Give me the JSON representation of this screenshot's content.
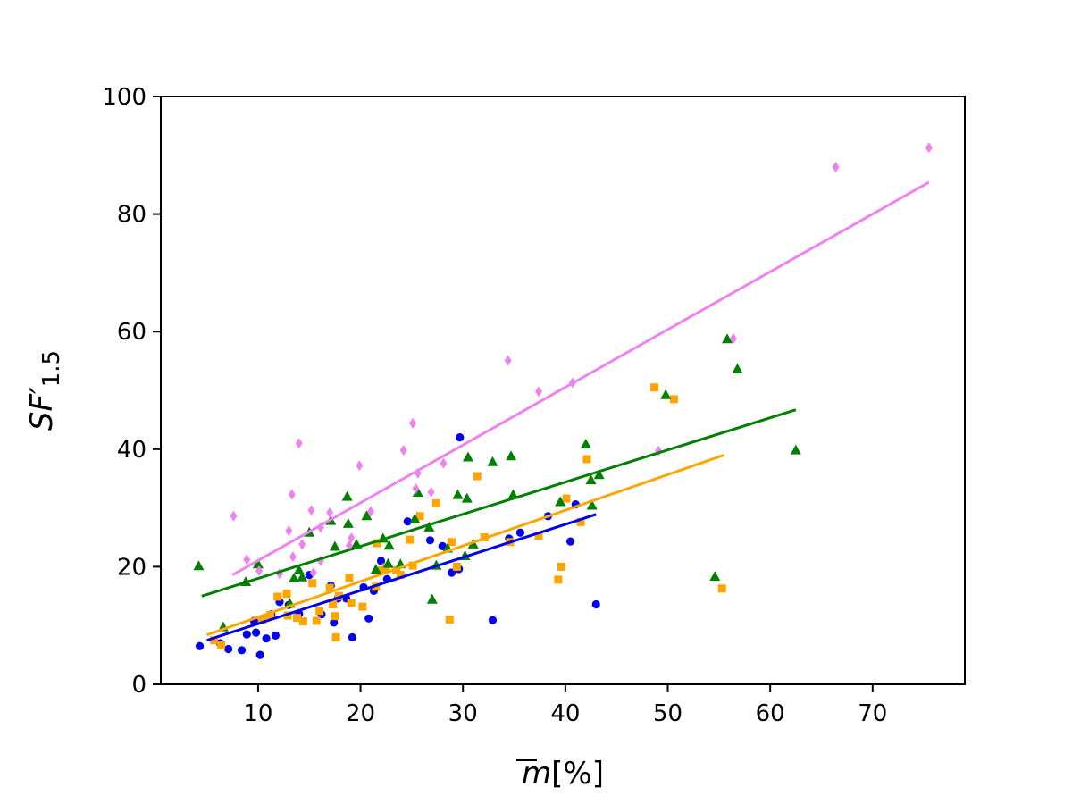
{
  "chart_data": {
    "type": "scatter",
    "title": "",
    "xlabel": "m̄[%]",
    "xlabel_main": "m",
    "xlabel_unit": "[%]",
    "ylabel": "SF′1.5",
    "ylabel_main": "SF′",
    "ylabel_sub": "1.5",
    "xlim": [
      0.5,
      79
    ],
    "ylim": [
      0,
      100
    ],
    "xticks": [
      10,
      20,
      30,
      40,
      50,
      60,
      70
    ],
    "yticks": [
      0,
      20,
      40,
      60,
      80,
      100
    ],
    "xtick_labels": [
      "10",
      "20",
      "30",
      "40",
      "50",
      "60",
      "70"
    ],
    "ytick_labels": [
      "0",
      "20",
      "40",
      "60",
      "80",
      "100"
    ],
    "grid": false,
    "series": [
      {
        "name": "blue circles",
        "color": "#0000ee",
        "marker": "circle",
        "points": [
          [
            4.3,
            6.5
          ],
          [
            6.3,
            7.0
          ],
          [
            7.1,
            6.0
          ],
          [
            8.4,
            5.8
          ],
          [
            8.9,
            8.5
          ],
          [
            9.6,
            10.8
          ],
          [
            9.8,
            8.8
          ],
          [
            10.2,
            5.0
          ],
          [
            10.8,
            7.8
          ],
          [
            11.3,
            11.9
          ],
          [
            11.7,
            8.3
          ],
          [
            12.1,
            14.0
          ],
          [
            13.0,
            13.5
          ],
          [
            14.0,
            12.0
          ],
          [
            15.0,
            18.6
          ],
          [
            16.2,
            11.9
          ],
          [
            17.1,
            16.8
          ],
          [
            17.4,
            10.5
          ],
          [
            17.8,
            14.6
          ],
          [
            18.6,
            14.6
          ],
          [
            19.2,
            8.0
          ],
          [
            20.3,
            16.5
          ],
          [
            20.8,
            11.2
          ],
          [
            21.3,
            15.9
          ],
          [
            22.0,
            21.0
          ],
          [
            22.6,
            17.9
          ],
          [
            24.6,
            27.7
          ],
          [
            26.8,
            24.5
          ],
          [
            28.0,
            23.5
          ],
          [
            28.9,
            19.0
          ],
          [
            29.6,
            19.6
          ],
          [
            29.7,
            42.0
          ],
          [
            32.9,
            10.9
          ],
          [
            34.5,
            24.8
          ],
          [
            35.6,
            25.8
          ],
          [
            38.3,
            28.6
          ],
          [
            40.5,
            24.3
          ],
          [
            41.0,
            30.6
          ],
          [
            43.0,
            13.6
          ]
        ]
      },
      {
        "name": "orange squares",
        "color": "#ffa500",
        "marker": "square",
        "points": [
          [
            5.7,
            7.5
          ],
          [
            6.4,
            6.7
          ],
          [
            10.4,
            11.0
          ],
          [
            11.2,
            11.8
          ],
          [
            11.9,
            14.9
          ],
          [
            12.8,
            15.4
          ],
          [
            12.9,
            11.7
          ],
          [
            13.8,
            11.3
          ],
          [
            14.4,
            10.7
          ],
          [
            15.3,
            17.2
          ],
          [
            15.7,
            10.8
          ],
          [
            16.0,
            12.5
          ],
          [
            17.0,
            16.4
          ],
          [
            17.3,
            13.6
          ],
          [
            17.5,
            11.6
          ],
          [
            17.6,
            8.0
          ],
          [
            17.9,
            15.0
          ],
          [
            18.9,
            18.1
          ],
          [
            19.1,
            13.9
          ],
          [
            20.2,
            13.2
          ],
          [
            21.5,
            16.6
          ],
          [
            21.6,
            24.0
          ],
          [
            22.1,
            19.4
          ],
          [
            22.5,
            19.9
          ],
          [
            23.5,
            19.4
          ],
          [
            23.9,
            18.6
          ],
          [
            24.8,
            24.6
          ],
          [
            25.1,
            20.2
          ],
          [
            25.8,
            28.6
          ],
          [
            27.4,
            30.8
          ],
          [
            28.7,
            11.0
          ],
          [
            28.9,
            24.2
          ],
          [
            29.4,
            20.0
          ],
          [
            31.4,
            35.4
          ],
          [
            32.1,
            25.0
          ],
          [
            34.6,
            24.2
          ],
          [
            37.4,
            25.3
          ],
          [
            39.3,
            17.8
          ],
          [
            39.6,
            20.0
          ],
          [
            40.1,
            31.6
          ],
          [
            41.5,
            27.6
          ],
          [
            42.1,
            38.3
          ],
          [
            48.7,
            50.5
          ],
          [
            50.6,
            48.5
          ],
          [
            55.3,
            16.3
          ]
        ]
      },
      {
        "name": "green triangles",
        "color": "#008000",
        "marker": "triangle",
        "points": [
          [
            4.2,
            20.1
          ],
          [
            6.6,
            9.7
          ],
          [
            8.8,
            17.4
          ],
          [
            10.0,
            20.4
          ],
          [
            13.1,
            13.7
          ],
          [
            13.5,
            18.0
          ],
          [
            14.0,
            19.4
          ],
          [
            14.3,
            18.2
          ],
          [
            15.0,
            25.8
          ],
          [
            17.1,
            27.8
          ],
          [
            17.5,
            23.4
          ],
          [
            18.7,
            31.9
          ],
          [
            18.8,
            27.3
          ],
          [
            19.6,
            23.8
          ],
          [
            20.6,
            28.6
          ],
          [
            21.5,
            19.5
          ],
          [
            22.2,
            24.8
          ],
          [
            22.7,
            20.5
          ],
          [
            22.8,
            23.6
          ],
          [
            23.9,
            20.4
          ],
          [
            25.3,
            28.1
          ],
          [
            25.6,
            32.6
          ],
          [
            26.7,
            26.7
          ],
          [
            27.0,
            14.4
          ],
          [
            27.4,
            20.2
          ],
          [
            28.5,
            23.1
          ],
          [
            29.5,
            32.2
          ],
          [
            30.2,
            21.8
          ],
          [
            30.4,
            31.6
          ],
          [
            30.5,
            38.6
          ],
          [
            31.0,
            23.8
          ],
          [
            32.9,
            37.8
          ],
          [
            34.7,
            38.8
          ],
          [
            34.9,
            32.2
          ],
          [
            39.5,
            31.0
          ],
          [
            42.0,
            40.8
          ],
          [
            42.5,
            34.7
          ],
          [
            42.6,
            30.4
          ],
          [
            43.3,
            35.6
          ],
          [
            49.8,
            49.2
          ],
          [
            54.6,
            18.3
          ],
          [
            55.8,
            58.7
          ],
          [
            56.8,
            53.6
          ],
          [
            62.5,
            39.8
          ]
        ]
      },
      {
        "name": "violet diamonds",
        "color": "#ee82ee",
        "marker": "diamond",
        "points": [
          [
            7.6,
            28.6
          ],
          [
            8.9,
            21.2
          ],
          [
            10.1,
            19.3
          ],
          [
            12.1,
            18.8
          ],
          [
            13.0,
            26.1
          ],
          [
            13.3,
            32.3
          ],
          [
            13.4,
            21.7
          ],
          [
            14.0,
            41.0
          ],
          [
            14.3,
            23.8
          ],
          [
            15.2,
            29.6
          ],
          [
            15.4,
            19.0
          ],
          [
            16.1,
            26.7
          ],
          [
            16.1,
            21.0
          ],
          [
            17.0,
            29.2
          ],
          [
            18.9,
            23.6
          ],
          [
            19.1,
            24.9
          ],
          [
            19.9,
            37.2
          ],
          [
            21.0,
            29.4
          ],
          [
            24.2,
            39.8
          ],
          [
            25.1,
            44.4
          ],
          [
            25.4,
            33.3
          ],
          [
            25.6,
            35.9
          ],
          [
            26.9,
            32.7
          ],
          [
            28.1,
            37.6
          ],
          [
            34.4,
            55.1
          ],
          [
            37.4,
            49.8
          ],
          [
            40.7,
            51.3
          ],
          [
            49.1,
            39.7
          ],
          [
            56.4,
            58.8
          ],
          [
            66.4,
            88.0
          ],
          [
            75.5,
            91.3
          ]
        ]
      }
    ],
    "fit_lines": [
      {
        "name": "blue fit",
        "color": "#0000ee",
        "x": [
          5.0,
          43.0
        ],
        "y": [
          7.5,
          28.9
        ]
      },
      {
        "name": "orange fit",
        "color": "#ffa500",
        "x": [
          5.0,
          55.5
        ],
        "y": [
          8.4,
          39.0
        ]
      },
      {
        "name": "green fit",
        "color": "#008000",
        "x": [
          4.5,
          62.5
        ],
        "y": [
          15.0,
          46.7
        ]
      },
      {
        "name": "violet fit",
        "color": "#ee82ee",
        "x": [
          7.5,
          75.5
        ],
        "y": [
          18.6,
          85.4
        ]
      }
    ]
  }
}
